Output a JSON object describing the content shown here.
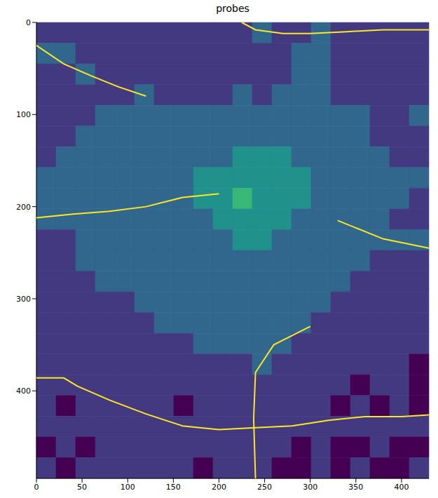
{
  "chart_data": {
    "type": "heatmap",
    "title": "probes",
    "xlim": [
      0,
      430
    ],
    "ylim": [
      495,
      0
    ],
    "xticks": [
      0,
      50,
      100,
      150,
      200,
      250,
      300,
      350,
      400
    ],
    "yticks": [
      0,
      100,
      200,
      300,
      400
    ],
    "grid": false,
    "clim": [
      0,
      6
    ],
    "x_edges": [
      0,
      21.5,
      43,
      64.5,
      86,
      107.5,
      129,
      150.5,
      172,
      193.5,
      215,
      236.5,
      258,
      279.5,
      301,
      322.5,
      344,
      365.5,
      387,
      408.5,
      430
    ],
    "y_edges": [
      0,
      22.5,
      45,
      67.5,
      90,
      112.5,
      135,
      157.5,
      180,
      202.5,
      225,
      247.5,
      270,
      292.5,
      315,
      337.5,
      360,
      382.5,
      405,
      427.5,
      450,
      472.5,
      495
    ],
    "cells": [
      [
        1,
        1,
        1,
        1,
        1,
        1,
        1,
        1,
        1,
        1,
        1,
        2,
        1,
        1,
        2,
        1,
        1,
        1,
        1,
        1
      ],
      [
        2,
        2,
        1,
        1,
        1,
        1,
        1,
        1,
        1,
        1,
        1,
        1,
        1,
        2,
        2,
        1,
        1,
        1,
        1,
        1
      ],
      [
        1,
        1,
        2,
        1,
        1,
        1,
        1,
        1,
        1,
        1,
        1,
        1,
        1,
        2,
        2,
        1,
        1,
        1,
        1,
        1
      ],
      [
        1,
        1,
        1,
        1,
        1,
        2,
        1,
        1,
        1,
        1,
        2,
        1,
        2,
        2,
        2,
        1,
        1,
        1,
        1,
        1
      ],
      [
        1,
        1,
        1,
        2,
        2,
        2,
        2,
        2,
        2,
        2,
        2,
        2,
        2,
        2,
        2,
        2,
        2,
        1,
        1,
        2
      ],
      [
        1,
        1,
        2,
        2,
        2,
        2,
        2,
        2,
        2,
        2,
        2,
        2,
        2,
        2,
        2,
        2,
        2,
        1,
        1,
        1
      ],
      [
        1,
        2,
        2,
        2,
        2,
        2,
        2,
        2,
        2,
        2,
        3,
        3,
        3,
        2,
        2,
        2,
        2,
        2,
        1,
        1
      ],
      [
        2,
        2,
        2,
        2,
        2,
        2,
        2,
        2,
        3,
        3,
        3,
        3,
        3,
        3,
        2,
        2,
        2,
        2,
        2,
        2
      ],
      [
        2,
        2,
        2,
        2,
        2,
        2,
        2,
        2,
        3,
        3,
        4,
        3,
        3,
        3,
        2,
        2,
        2,
        2,
        2,
        1
      ],
      [
        2,
        2,
        2,
        2,
        2,
        2,
        2,
        2,
        2,
        3,
        3,
        3,
        3,
        2,
        2,
        2,
        2,
        2,
        1,
        1
      ],
      [
        1,
        1,
        2,
        2,
        2,
        2,
        2,
        2,
        2,
        2,
        3,
        3,
        2,
        2,
        2,
        2,
        2,
        2,
        2,
        2
      ],
      [
        1,
        1,
        2,
        2,
        2,
        2,
        2,
        2,
        2,
        2,
        2,
        2,
        2,
        2,
        2,
        2,
        2,
        1,
        1,
        1
      ],
      [
        1,
        1,
        1,
        2,
        2,
        2,
        2,
        2,
        2,
        2,
        2,
        2,
        2,
        2,
        2,
        2,
        1,
        1,
        1,
        1
      ],
      [
        1,
        1,
        1,
        1,
        1,
        2,
        2,
        2,
        2,
        2,
        2,
        2,
        2,
        2,
        2,
        1,
        1,
        1,
        1,
        1
      ],
      [
        1,
        1,
        1,
        1,
        1,
        1,
        2,
        2,
        2,
        2,
        2,
        2,
        2,
        2,
        1,
        1,
        1,
        1,
        1,
        1
      ],
      [
        1,
        1,
        1,
        1,
        1,
        1,
        1,
        1,
        2,
        2,
        2,
        2,
        2,
        1,
        1,
        1,
        1,
        1,
        1,
        1
      ],
      [
        1,
        1,
        1,
        1,
        1,
        1,
        1,
        1,
        1,
        1,
        1,
        2,
        1,
        1,
        1,
        1,
        1,
        1,
        1,
        0
      ],
      [
        1,
        1,
        1,
        1,
        1,
        1,
        1,
        1,
        1,
        1,
        1,
        1,
        1,
        1,
        1,
        1,
        0,
        1,
        1,
        0
      ],
      [
        1,
        0,
        1,
        1,
        1,
        1,
        1,
        0,
        1,
        1,
        1,
        1,
        1,
        1,
        1,
        0,
        1,
        0,
        1,
        0
      ],
      [
        1,
        1,
        1,
        1,
        1,
        1,
        1,
        1,
        1,
        1,
        1,
        1,
        1,
        1,
        1,
        1,
        1,
        1,
        1,
        1
      ],
      [
        0,
        1,
        0,
        1,
        1,
        1,
        1,
        1,
        1,
        1,
        1,
        1,
        1,
        0,
        1,
        0,
        0,
        1,
        0,
        0
      ],
      [
        1,
        0,
        1,
        1,
        1,
        1,
        1,
        1,
        0,
        1,
        1,
        1,
        0,
        0,
        1,
        0,
        1,
        0,
        0,
        1
      ]
    ],
    "roads": {
      "color": "#fde725",
      "lines": [
        [
          [
            0,
            386
          ],
          [
            30,
            386
          ],
          [
            45,
            395
          ],
          [
            80,
            410
          ],
          [
            120,
            425
          ],
          [
            160,
            438
          ],
          [
            200,
            442
          ],
          [
            240,
            440
          ],
          [
            280,
            438
          ],
          [
            320,
            432
          ],
          [
            360,
            428
          ],
          [
            400,
            428
          ],
          [
            430,
            426
          ]
        ],
        [
          [
            0,
            25
          ],
          [
            30,
            45
          ],
          [
            60,
            58
          ],
          [
            90,
            70
          ],
          [
            120,
            80
          ]
        ],
        [
          [
            225,
            0
          ],
          [
            240,
            8
          ],
          [
            270,
            12
          ],
          [
            300,
            12
          ],
          [
            340,
            10
          ],
          [
            380,
            8
          ],
          [
            430,
            8
          ]
        ],
        [
          [
            0,
            212
          ],
          [
            40,
            208
          ],
          [
            80,
            205
          ],
          [
            120,
            200
          ],
          [
            160,
            190
          ],
          [
            200,
            186
          ]
        ],
        [
          [
            330,
            215
          ],
          [
            380,
            235
          ],
          [
            430,
            245
          ]
        ],
        [
          [
            300,
            330
          ],
          [
            260,
            350
          ],
          [
            240,
            380
          ],
          [
            238,
            430
          ],
          [
            240,
            495
          ]
        ]
      ]
    }
  }
}
